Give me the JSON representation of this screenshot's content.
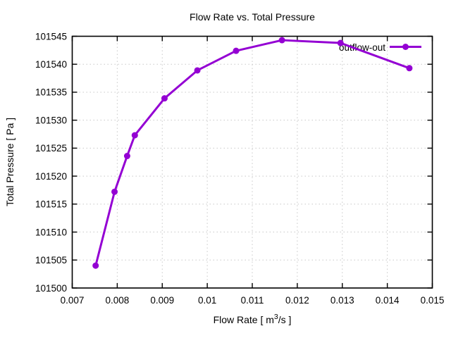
{
  "title": "Flow Rate vs. Total Pressure",
  "legend": {
    "label": "outflow-out"
  },
  "axes": {
    "ylabel": "Total Pressure [ Pa ]",
    "xlabel_prefix": "Flow Rate [ m",
    "xlabel_sup": "3",
    "xlabel_suffix": "/s ]"
  },
  "colors": {
    "accent": "#9400d3",
    "grid": "#c8c8c8",
    "frame": "#000000",
    "background": "#ffffff"
  },
  "chart_data": {
    "type": "line",
    "title": "Flow Rate vs. Total Pressure",
    "xlabel": "Flow Rate [ m^3/s ]",
    "ylabel": "Total Pressure [ Pa ]",
    "xlim": [
      0.007,
      0.015
    ],
    "ylim": [
      101500,
      101545
    ],
    "xticks": [
      0.007,
      0.008,
      0.009,
      0.01,
      0.011,
      0.012,
      0.013,
      0.014,
      0.015
    ],
    "xtick_labels": [
      "0.007",
      "0.008",
      "0.009",
      "0.01",
      "0.011",
      "0.012",
      "0.013",
      "0.014",
      "0.015"
    ],
    "yticks": [
      101500,
      101505,
      101510,
      101515,
      101520,
      101525,
      101530,
      101535,
      101540,
      101545
    ],
    "ytick_labels": [
      "101500",
      "101505",
      "101510",
      "101515",
      "101520",
      "101525",
      "101530",
      "101535",
      "101540",
      "101545"
    ],
    "grid": true,
    "legend_position": "top-right-inside",
    "series": [
      {
        "name": "outflow-out",
        "color": "#9400d3",
        "marker": "filled-circle",
        "x": [
          0.00752,
          0.00794,
          0.00822,
          0.00839,
          0.00905,
          0.00978,
          0.01064,
          0.01166,
          0.01296,
          0.01449
        ],
        "y": [
          101504.0,
          101517.2,
          101523.6,
          101527.3,
          101533.9,
          101538.9,
          101542.4,
          101544.3,
          101543.8,
          101539.3
        ]
      }
    ]
  }
}
